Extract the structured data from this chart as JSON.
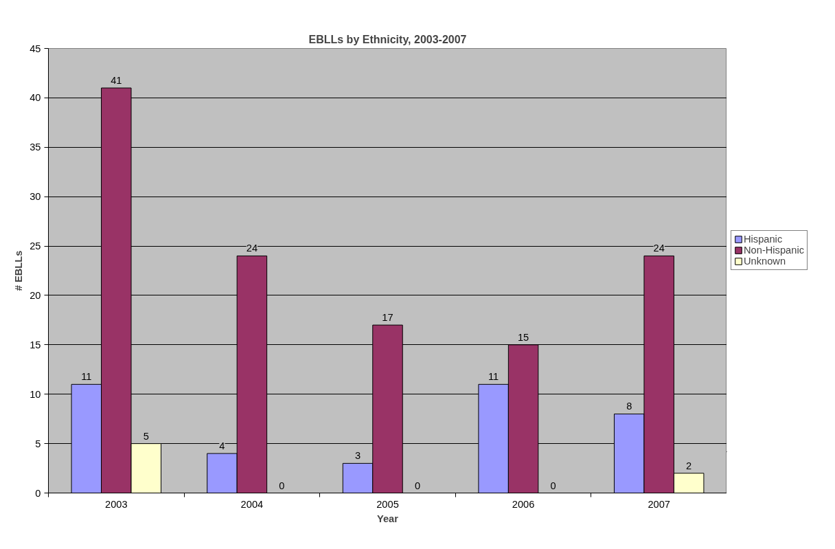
{
  "chart_data": {
    "type": "bar",
    "title": "EBLLs by Ethnicity, 2003-2007",
    "xlabel": "Year",
    "ylabel": "# EBLLs",
    "categories": [
      "2003",
      "2004",
      "2005",
      "2006",
      "2007"
    ],
    "series": [
      {
        "name": "Hispanic",
        "color": "#9999ff",
        "values": [
          11,
          4,
          3,
          11,
          8
        ]
      },
      {
        "name": "Non-Hispanic",
        "color": "#993366",
        "values": [
          41,
          24,
          17,
          15,
          24
        ]
      },
      {
        "name": "Unknown",
        "color": "#ffffcc",
        "values": [
          5,
          0,
          0,
          0,
          2
        ]
      }
    ],
    "ylim": [
      0,
      45
    ],
    "yticks": [
      0,
      5,
      10,
      15,
      20,
      25,
      30,
      35,
      40,
      45
    ],
    "grid": "y",
    "legend": "right",
    "data_labels": true
  }
}
